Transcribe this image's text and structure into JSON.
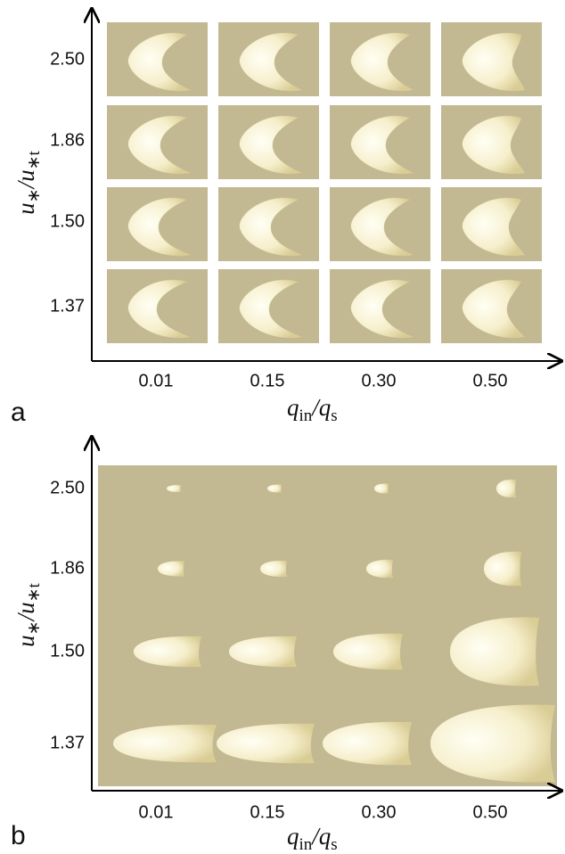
{
  "panels": [
    {
      "label": "a",
      "y_label": [
        "u",
        "∗",
        "/",
        "u",
        "∗t"
      ],
      "x_label": [
        "q",
        "in",
        "/",
        "q",
        "s"
      ],
      "y_categories": [
        "2.50",
        "1.86",
        "1.50",
        "1.37"
      ],
      "x_categories": [
        "0.01",
        "0.15",
        "0.30",
        "0.50"
      ]
    },
    {
      "label": "b",
      "y_label": [
        "u",
        "∗",
        "/",
        "u",
        "∗t"
      ],
      "x_label": [
        "q",
        "in",
        "/",
        "q",
        "s"
      ],
      "y_categories": [
        "2.50",
        "1.86",
        "1.50",
        "1.37"
      ],
      "x_categories": [
        "0.01",
        "0.15",
        "0.30",
        "0.50"
      ]
    }
  ]
}
